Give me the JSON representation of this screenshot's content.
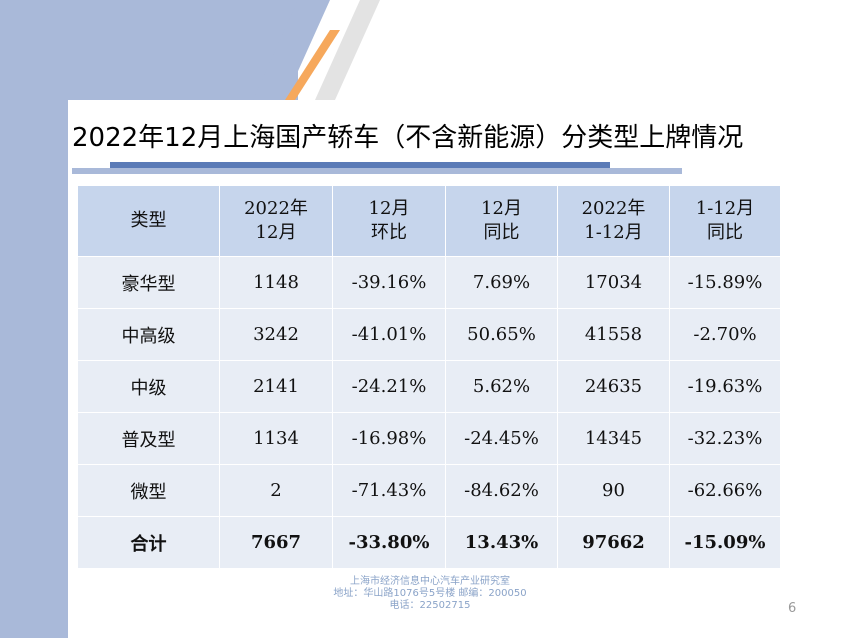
{
  "slide": {
    "title": "2022年12月上海国产轿车（不含新能源）分类型上牌情况",
    "page_number": "6"
  },
  "table": {
    "headers": [
      [
        "类型"
      ],
      [
        "2022年",
        "12月"
      ],
      [
        "12月",
        "环比"
      ],
      [
        "12月",
        "同比"
      ],
      [
        "2022年",
        "1-12月"
      ],
      [
        "1-12月",
        "同比"
      ]
    ],
    "rows": [
      [
        "豪华型",
        "1148",
        "-39.16%",
        "7.69%",
        "17034",
        "-15.89%"
      ],
      [
        "中高级",
        "3242",
        "-41.01%",
        "50.65%",
        "41558",
        "-2.70%"
      ],
      [
        "中级",
        "2141",
        "-24.21%",
        "5.62%",
        "24635",
        "-19.63%"
      ],
      [
        "普及型",
        "1134",
        "-16.98%",
        "-24.45%",
        "14345",
        "-32.23%"
      ],
      [
        "微型",
        "2",
        "-71.43%",
        "-84.62%",
        "90",
        "-62.66%"
      ],
      [
        "合计",
        "7667",
        "-33.80%",
        "13.43%",
        "97662",
        "-15.09%"
      ]
    ]
  },
  "footer": {
    "line1": "上海市经济信息中心汽车产业研究室",
    "line2": "地址：华山路1076号5号楼    邮编：200050",
    "line3": "电话：22502715"
  },
  "colors": {
    "band": "#a9b9d9",
    "accent_orange": "#f6a85c",
    "underline_dark": "#5b7bb7",
    "header_fill": "#c6d5ec",
    "cell_fill": "#e8edf5"
  }
}
